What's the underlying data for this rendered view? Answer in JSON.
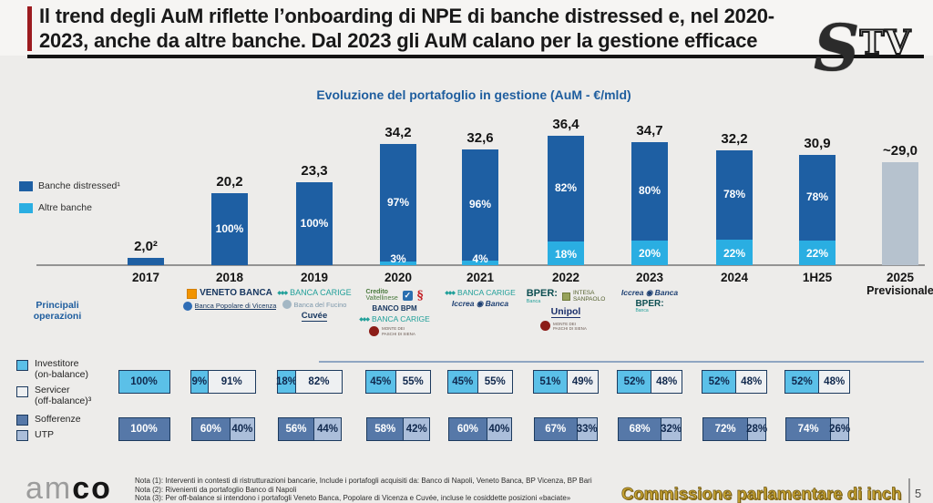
{
  "header": {
    "title_line1": "Il trend degli AuM riflette l’onboarding di NPE di banche distressed e, nel 2020-",
    "title_line2": "2023, anche da altre banche. Dal 2023 gli AuM calano per la gestione efficace",
    "watermark_s": "S",
    "watermark_tv": "TV"
  },
  "chart_data": {
    "type": "bar",
    "stacked": true,
    "title": "Evoluzione del portafoglio in gestione (AuM - €/mld)",
    "unit": "€/mld",
    "categories": [
      "2017",
      "2018",
      "2019",
      "2020",
      "2021",
      "2022",
      "2023",
      "2024",
      "1H25",
      "2025 Previsionale"
    ],
    "totals": [
      2.0,
      20.2,
      23.3,
      34.2,
      32.6,
      36.4,
      34.7,
      32.2,
      30.9,
      29.0
    ],
    "total_labels": [
      "2,0²",
      "20,2",
      "23,3",
      "34,2",
      "32,6",
      "36,4",
      "34,7",
      "32,2",
      "30,9",
      "~29,0"
    ],
    "series": [
      {
        "name": "Banche distressed¹",
        "color": "#1e5fa3",
        "pct": [
          100,
          100,
          100,
          97,
          96,
          82,
          80,
          78,
          78,
          null
        ]
      },
      {
        "name": "Altre banche",
        "color": "#2aaee2",
        "pct": [
          0,
          0,
          0,
          3,
          4,
          18,
          20,
          22,
          22,
          null
        ]
      }
    ],
    "pct_labels_dark": [
      "",
      "100%",
      "100%",
      "97%",
      "96%",
      "82%",
      "80%",
      "78%",
      "78%",
      ""
    ],
    "pct_labels_light": [
      "",
      "",
      "",
      "3%",
      "4%",
      "18%",
      "20%",
      "22%",
      "22%",
      ""
    ],
    "forecast_color": "#b6c2ce",
    "legend_position": "left",
    "grid": false
  },
  "legend": [
    {
      "label": "Banche distressed¹",
      "color": "#1e5fa3"
    },
    {
      "label": "Altre banche",
      "color": "#2aaee2"
    }
  ],
  "logos": {
    "label_line1": "Principali",
    "label_line2": "operazioni",
    "columns": [
      {
        "year": "2018",
        "rows": [
          [
            {
              "name": "veneto-banca",
              "label": "VENETO BANCA",
              "color": "#16365f",
              "size": 10,
              "bold": true,
              "icon": "veneto"
            }
          ],
          [
            {
              "name": "banca-popolare-di-vicenza",
              "label": "Banca Popolare di Vicenza",
              "color": "#16365f",
              "size": 7.5,
              "underline": true,
              "icon": "circle-blue"
            }
          ]
        ]
      },
      {
        "year": "2019",
        "rows": [
          [
            {
              "name": "banca-carige",
              "label": "BANCA CARIGE",
              "color": "#22a09a",
              "size": 9,
              "icon": "diamonds"
            }
          ],
          [
            {
              "name": "banca-del-fucino",
              "label": "Banca del Fucino",
              "color": "#7d98ab",
              "size": 7.5,
              "icon": "circle-gray"
            }
          ],
          [
            {
              "name": "cuvee",
              "label": "Cuvée",
              "color": "#16365f",
              "size": 9.5,
              "bold": true,
              "underline": true
            }
          ]
        ]
      },
      {
        "year": "2020",
        "rows": [
          [
            {
              "name": "credito-valtellinese",
              "label": "Credito",
              "sub": "Valtellinese",
              "sub_size": 7,
              "sub_color": "#49793c",
              "color": "#49793c",
              "size": 7,
              "bold": true
            },
            {
              "name": "credito-valtellinese-check",
              "label": "",
              "icon": "check"
            },
            {
              "name": "banca-popolare-di-bari",
              "label": "",
              "icon": "bpbari"
            }
          ],
          [
            {
              "name": "banco-bpm",
              "label": "BANCO BPM",
              "color": "#16365f",
              "size": 8,
              "bold": true
            }
          ],
          [
            {
              "name": "banca-carige-2",
              "label": "BANCA CARIGE",
              "color": "#22a09a",
              "size": 8.5,
              "icon": "diamonds"
            }
          ],
          [
            {
              "name": "monte-dei-paschi",
              "label": "MONTE DEI PASCHI DI SIENA",
              "color": "#6b5a52",
              "size": 4.5,
              "w": 42,
              "icon": "mps"
            }
          ]
        ]
      },
      {
        "year": "2021",
        "rows": [
          [
            {
              "name": "banca-carige-3",
              "label": "BANCA CARIGE",
              "color": "#22a09a",
              "size": 8.5,
              "icon": "diamonds"
            }
          ],
          [
            {
              "name": "iccrea-banca",
              "label": "Iccrea ◉ Banca",
              "color": "#1d3f72",
              "size": 8.5,
              "bold": true,
              "italic": true
            }
          ]
        ]
      },
      {
        "year": "2022",
        "rows": [
          [
            {
              "name": "bper-banca",
              "label": "BPER:",
              "sub": "Banca",
              "sub_size": 5.5,
              "sub_color": "#22a09a",
              "color": "#0e4f52",
              "size": 11,
              "bold": true
            },
            {
              "name": "intesa-sanpaolo",
              "label": "INTESA",
              "sub": "SANPAOLO",
              "sub_size": 6.5,
              "sub_color": "#55612f",
              "color": "#55612f",
              "size": 6.5,
              "icon": "intesa"
            }
          ],
          [
            {
              "name": "unipol",
              "label": "Unipol",
              "color": "#1b2f6b",
              "size": 10.5,
              "bold": true,
              "underline": true
            }
          ],
          [
            {
              "name": "monte-dei-paschi-2",
              "label": "MONTE DEI PASCHI DI SIENA",
              "color": "#6b5a52",
              "size": 4.5,
              "w": 42,
              "icon": "mps"
            }
          ]
        ]
      },
      {
        "year": "2023",
        "rows": [
          [
            {
              "name": "iccrea-banca-2",
              "label": "Iccrea ◉ Banca",
              "color": "#1d3f72",
              "size": 8.5,
              "bold": true,
              "italic": true
            }
          ],
          [
            {
              "name": "bper-banca-2",
              "label": "BPER:",
              "sub": "Banca",
              "sub_size": 5,
              "sub_color": "#22a09a",
              "color": "#0e4f52",
              "size": 10,
              "bold": true
            }
          ]
        ]
      }
    ]
  },
  "onbalance_row": {
    "legend": [
      {
        "label": "Investitore",
        "sub": "(on-balance)",
        "color": "#5bc0e8"
      },
      {
        "label": "Servicer",
        "sub": "(off-balance)³",
        "color": "#eef0f2"
      }
    ],
    "bars": [
      [
        "100%",
        null
      ],
      [
        "9%",
        "91%"
      ],
      [
        "18%",
        "82%"
      ],
      [
        "45%",
        "55%"
      ],
      [
        "45%",
        "55%"
      ],
      [
        "51%",
        "49%"
      ],
      [
        "52%",
        "48%"
      ],
      [
        "52%",
        "48%"
      ],
      [
        "52%",
        "48%"
      ]
    ]
  },
  "npe_row": {
    "legend": [
      {
        "label": "Sofferenze",
        "color": "#5678a8"
      },
      {
        "label": "UTP",
        "color": "#abbeda"
      }
    ],
    "bars": [
      [
        "100%",
        null
      ],
      [
        "60%",
        "40%"
      ],
      [
        "56%",
        "44%"
      ],
      [
        "58%",
        "42%"
      ],
      [
        "60%",
        "40%"
      ],
      [
        "67%",
        "33%"
      ],
      [
        "68%",
        "32%"
      ],
      [
        "72%",
        "28%"
      ],
      [
        "74%",
        "26%"
      ]
    ]
  },
  "footer": {
    "logo_am": "am",
    "logo_co": "co",
    "notes": [
      "Nota (1): Interventi in contesti di ristrutturazioni bancarie, Include i portafogli acquisiti da: Banco di Napoli, Veneto Banca, BP Vicenza, BP Bari",
      "Nota (2): Rivenienti da portafoglio Banco di Napoli",
      "Nota (3): Per off-balance si intendono i portafogli Veneto Banca, Popolare di Vicenza e Cuvée, incluse le cosiddette posizioni «baciate»"
    ],
    "overlay_text": "Commissione parlamentare di inch",
    "page_number": "5"
  }
}
